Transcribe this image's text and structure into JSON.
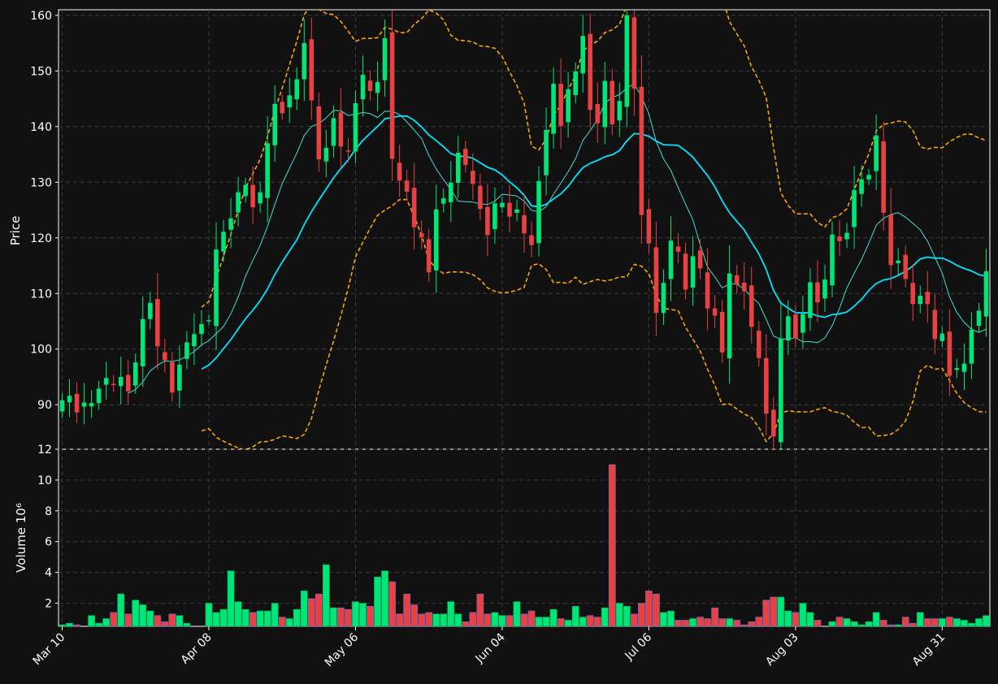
{
  "chart_data": {
    "type": "candlestick",
    "x_tick_labels": [
      "Mar 10",
      "Apr 08",
      "May 06",
      "Jun 04",
      "Jul 06",
      "Aug 03",
      "Aug 31"
    ],
    "price_panel": {
      "ylabel": "Price",
      "ylim": [
        82,
        161
      ],
      "y_ticks": [
        "90",
        "100",
        "110",
        "120",
        "130",
        "140",
        "150",
        "160"
      ],
      "grid": true,
      "overlays": [
        {
          "kind": "moving-average-short",
          "color": "#40e0d0"
        },
        {
          "kind": "moving-average-long",
          "color": "#00e5ff"
        },
        {
          "kind": "bollinger-bands",
          "style": "dashed",
          "color": "#ffa500"
        }
      ],
      "candle_up_color": "#00e676",
      "candle_down_color": "#e84142",
      "closes": [
        90.8,
        91.6,
        88.6,
        90.4,
        90.3,
        92.9,
        94.8,
        93.7,
        95.0,
        92.4,
        97.6,
        105.4,
        108.3,
        100.5,
        98.0,
        92.2,
        97.2,
        101.2,
        102.7,
        104.5,
        105.2,
        117.9,
        121.1,
        123.5,
        128.2,
        129.5,
        125.5,
        128.2,
        137.0,
        144.1,
        142.4,
        145.6,
        148.5,
        155.0,
        144.7,
        134.1,
        136.2,
        141.5,
        136.4,
        135.5,
        144.2,
        149.3,
        146.4,
        148.0,
        155.9,
        134.2,
        130.3,
        128.3,
        121.9,
        120.1,
        113.8,
        125.1,
        127.1,
        129.9,
        135.3,
        133.1,
        129.7,
        125.2,
        120.5,
        126.2,
        126.3,
        123.8,
        125.1,
        120.8,
        118.7,
        130.2,
        139.4,
        147.7,
        140.1,
        146.7,
        149.9,
        156.3,
        143.0,
        140.6,
        148.2,
        140.4,
        144.6,
        160.0,
        146.8,
        124.1,
        119.0,
        106.5,
        111.9,
        119.5,
        117.5,
        110.7,
        116.7,
        114.5,
        107.3,
        106.0,
        99.4,
        113.6,
        111.6,
        110.4,
        104.0,
        98.4,
        88.4,
        84.3,
        101.9,
        105.9,
        101.9,
        106.3,
        112.0,
        108.4,
        112.5,
        120.6,
        119.4,
        120.9,
        128.6,
        130.5,
        131.3,
        138.4,
        124.5,
        115.1,
        115.9,
        112.6,
        108.1,
        109.6,
        108.1,
        101.8,
        102.8,
        95.2,
        96.6,
        97.4,
        103.5,
        106.9,
        114.0
      ]
    },
    "volume_panel": {
      "ylabel": "Volume  10⁶",
      "ylim": [
        0.5,
        12
      ],
      "y_ticks": [
        "2",
        "4",
        "6",
        "8",
        "10",
        "12"
      ],
      "values": [
        0.6,
        0.7,
        0.6,
        0.5,
        1.2,
        0.7,
        1.0,
        1.4,
        2.6,
        1.3,
        2.2,
        1.9,
        1.5,
        1.2,
        0.8,
        1.3,
        1.2,
        0.7,
        0.4,
        0.4,
        2.0,
        1.4,
        1.6,
        4.1,
        2.1,
        1.6,
        1.4,
        1.5,
        1.5,
        2.0,
        1.1,
        1.0,
        1.6,
        2.8,
        2.3,
        2.6,
        4.5,
        1.7,
        1.7,
        1.6,
        2.1,
        2.0,
        1.8,
        3.7,
        4.1,
        3.4,
        1.3,
        2.6,
        1.9,
        1.3,
        1.4,
        1.3,
        1.3,
        2.1,
        1.3,
        0.8,
        1.4,
        2.6,
        1.3,
        1.4,
        1.2,
        1.2,
        2.1,
        1.3,
        1.5,
        1.1,
        1.1,
        1.6,
        1.0,
        0.9,
        1.8,
        1.1,
        1.2,
        1.1,
        1.7,
        11.0,
        2.0,
        1.8,
        1.3,
        2.0,
        2.8,
        2.6,
        1.4,
        1.5,
        0.9,
        0.9,
        1.0,
        1.1,
        1.0,
        1.7,
        1.0,
        1.0,
        0.9,
        0.6,
        0.8,
        1.1,
        2.2,
        2.4,
        2.4,
        1.5,
        1.4,
        2.0,
        1.4,
        0.9,
        0.4,
        0.8,
        1.1,
        1.0,
        0.8,
        0.6,
        0.8,
        1.4,
        0.9,
        0.6,
        0.6,
        1.1,
        0.7,
        1.4,
        1.0,
        1.0,
        1.0,
        1.1,
        1.0,
        0.9,
        0.7,
        1.0,
        1.2,
        1.1
      ]
    }
  }
}
